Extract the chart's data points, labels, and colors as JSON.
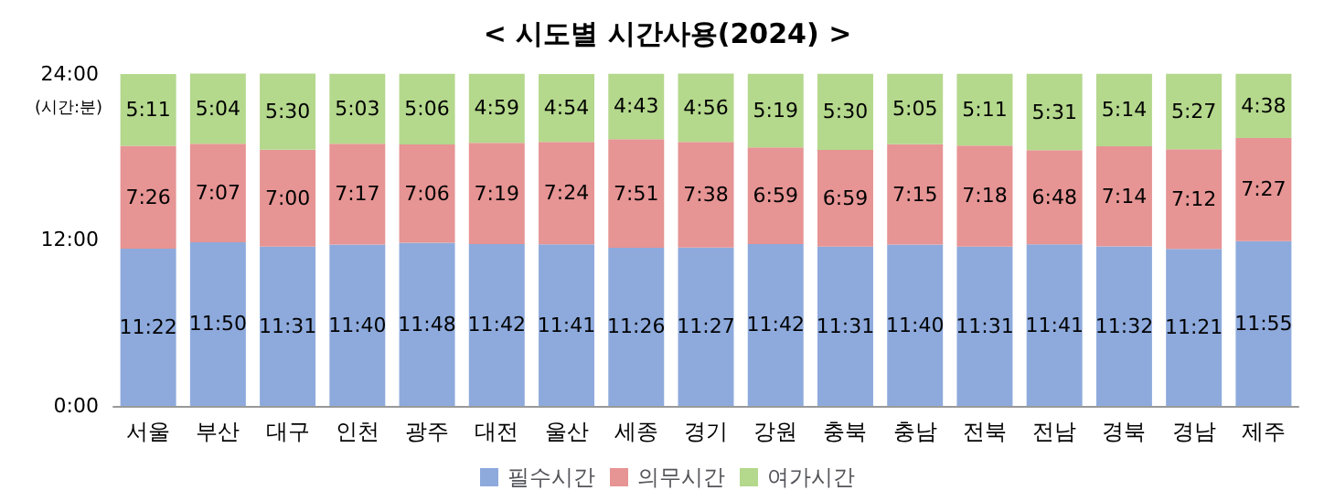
{
  "chart_data": {
    "type": "bar",
    "title": "< 시도별 시간사용(2024) >",
    "ylabel": "(시간:분)",
    "stacked": true,
    "legend": "bottom",
    "grid": false,
    "categories": [
      "서울",
      "부산",
      "대구",
      "인천",
      "광주",
      "대전",
      "울산",
      "세종",
      "경기",
      "강원",
      "충북",
      "충남",
      "전북",
      "전남",
      "경북",
      "경남",
      "제주"
    ],
    "ylim": [
      0,
      24.05
    ],
    "yticks": [
      {
        "value": 0,
        "label": "0:00"
      },
      {
        "value": 12,
        "label": "12:00"
      },
      {
        "value": 24,
        "label": "24:00"
      }
    ],
    "series": [
      {
        "name": "필수시간",
        "color": "#8eaadc",
        "values": [
          11.367,
          11.833,
          11.517,
          11.667,
          11.8,
          11.7,
          11.683,
          11.433,
          11.45,
          11.7,
          11.517,
          11.667,
          11.517,
          11.683,
          11.533,
          11.35,
          11.917
        ],
        "value_labels": [
          "11:22",
          "11:50",
          "11:31",
          "11:40",
          "11:48",
          "11:42",
          "11:41",
          "11:26",
          "11:27",
          "11:42",
          "11:31",
          "11:40",
          "11:31",
          "11:41",
          "11:32",
          "11:21",
          "11:55"
        ]
      },
      {
        "name": "의무시간",
        "color": "#e69494",
        "values": [
          7.433,
          7.117,
          7,
          7.283,
          7.1,
          7.317,
          7.4,
          7.85,
          7.633,
          6.983,
          6.983,
          7.25,
          7.3,
          6.8,
          7.233,
          7.2,
          7.45
        ],
        "value_labels": [
          "7:26",
          "7:07",
          "7:00",
          "7:17",
          "7:06",
          "7:19",
          "7:24",
          "7:51",
          "7:38",
          "6:59",
          "6:59",
          "7:15",
          "7:18",
          "6:48",
          "7:14",
          "7:12",
          "7:27"
        ]
      },
      {
        "name": "여가시간",
        "color": "#b4d88c",
        "values": [
          5.183,
          5.067,
          5.5,
          5.05,
          5.1,
          4.983,
          4.9,
          4.717,
          4.933,
          5.317,
          5.5,
          5.083,
          5.183,
          5.517,
          5.233,
          5.45,
          4.633
        ],
        "value_labels": [
          "5:11",
          "5:04",
          "5:30",
          "5:03",
          "5:06",
          "4:59",
          "4:54",
          "4:43",
          "4:56",
          "5:19",
          "5:30",
          "5:05",
          "5:11",
          "5:31",
          "5:14",
          "5:27",
          "4:38"
        ]
      }
    ]
  }
}
